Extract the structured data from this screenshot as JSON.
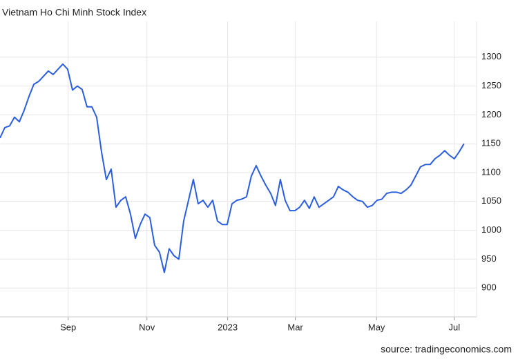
{
  "chart_data": {
    "type": "line",
    "title": "Vietnam Ho Chi Minh Stock Index",
    "source": "source: tradingeconomics.com",
    "series": [
      {
        "name": "Vietnam Ho Chi Minh Stock Index",
        "color": "#2a5ee0",
        "values": [
          1160,
          1178,
          1181,
          1196,
          1188,
          1208,
          1232,
          1253,
          1258,
          1267,
          1276,
          1270,
          1279,
          1288,
          1279,
          1243,
          1250,
          1244,
          1214,
          1214,
          1196,
          1136,
          1088,
          1106,
          1040,
          1052,
          1058,
          1028,
          986,
          1010,
          1028,
          1022,
          974,
          962,
          927,
          968,
          956,
          950,
          1016,
          1052,
          1088,
          1046,
          1052,
          1040,
          1052,
          1016,
          1010,
          1010,
          1046,
          1052,
          1054,
          1058,
          1094,
          1112,
          1094,
          1078,
          1064,
          1043,
          1088,
          1052,
          1034,
          1034,
          1040,
          1052,
          1038,
          1058,
          1040,
          1046,
          1052,
          1058,
          1076,
          1070,
          1066,
          1058,
          1052,
          1050,
          1040,
          1043,
          1052,
          1054,
          1064,
          1066,
          1066,
          1064,
          1070,
          1078,
          1094,
          1110,
          1114,
          1114,
          1124,
          1130,
          1138,
          1130,
          1124,
          1136,
          1150
        ]
      }
    ],
    "xlim": [
      0,
      98.6
    ],
    "xticks": [
      {
        "value": 14.1,
        "label": "Sep"
      },
      {
        "value": 30.4,
        "label": "Nov"
      },
      {
        "value": 47.1,
        "label": "2023"
      },
      {
        "value": 61.1,
        "label": "Mar"
      },
      {
        "value": 77.9,
        "label": "May"
      },
      {
        "value": 94.0,
        "label": "Jul"
      }
    ],
    "ylim": [
      850,
      1350
    ],
    "yticks": [
      900,
      950,
      1000,
      1050,
      1100,
      1150,
      1200,
      1250,
      1300
    ],
    "grid": true
  }
}
